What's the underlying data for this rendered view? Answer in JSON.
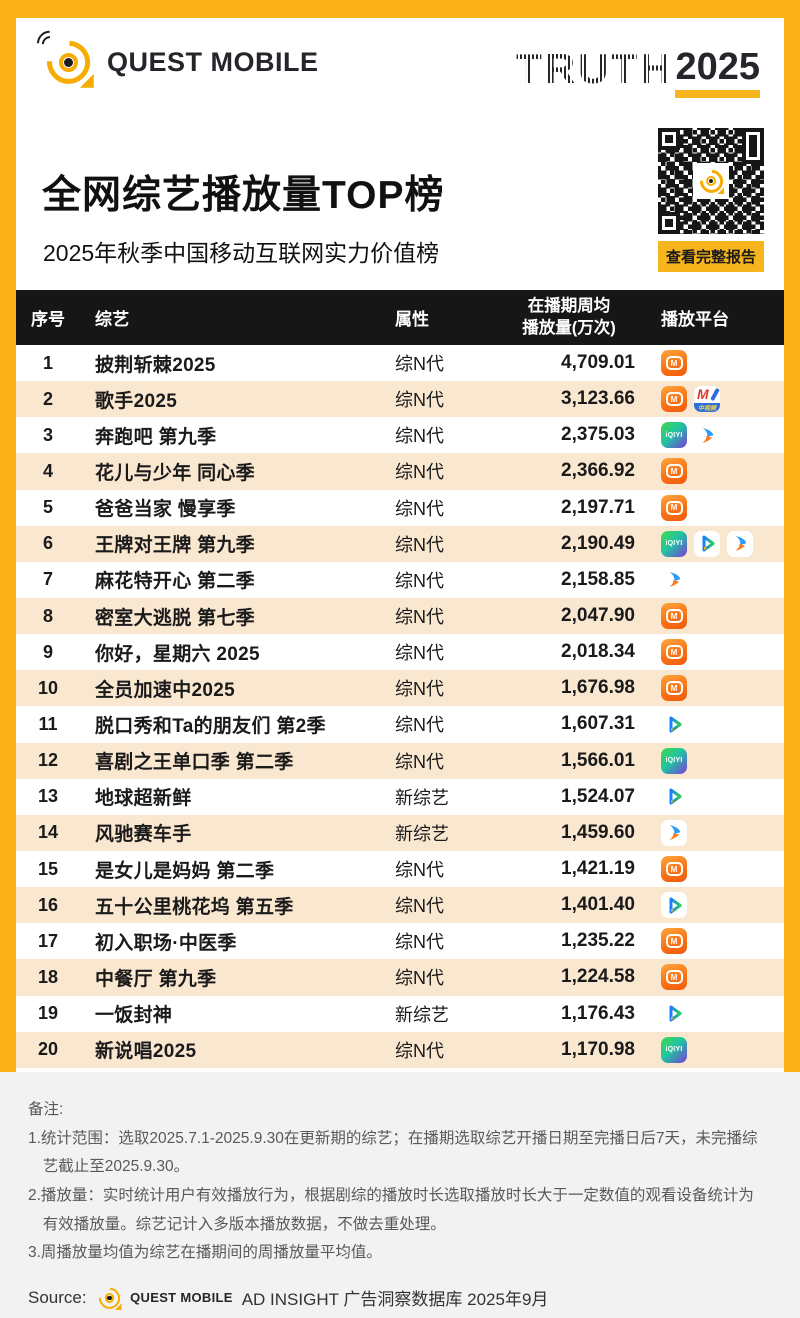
{
  "header": {
    "brand": "QUEST MOBILE",
    "truth_word": "TRUTH",
    "truth_year": "2025",
    "qr_button": "查看完整报告"
  },
  "title": "全网综艺播放量TOP榜",
  "subtitle": "2025年秋季中国移动互联网实力价值榜",
  "accent_colors": {
    "frame_yellow": "#FBB216",
    "row_alt": "#FAE7D0",
    "header_black": "#161616",
    "footer_gray": "#F2F2F2"
  },
  "chart_data": {
    "type": "table",
    "title": "全网综艺播放量TOP榜",
    "subtitle": "2025年秋季中国移动互联网实力价值榜",
    "columns": [
      "序号",
      "综艺",
      "属性",
      "在播期周均播放量(万次)",
      "播放平台"
    ],
    "rows": [
      {
        "rank": "1",
        "show": "披荆斩棘2025",
        "attr": "综N代",
        "value": "4,709.01",
        "platforms": [
          "mgtv"
        ]
      },
      {
        "rank": "2",
        "show": "歌手2025",
        "attr": "综N代",
        "value": "3,123.66",
        "platforms": [
          "mgtv",
          "zhongshipin"
        ]
      },
      {
        "rank": "3",
        "show": "奔跑吧 第九季",
        "attr": "综N代",
        "value": "2,375.03",
        "platforms": [
          "iqiyi",
          "youku"
        ]
      },
      {
        "rank": "4",
        "show": "花儿与少年 同心季",
        "attr": "综N代",
        "value": "2,366.92",
        "platforms": [
          "mgtv"
        ]
      },
      {
        "rank": "5",
        "show": "爸爸当家 慢享季",
        "attr": "综N代",
        "value": "2,197.71",
        "platforms": [
          "mgtv"
        ]
      },
      {
        "rank": "6",
        "show": "王牌对王牌 第九季",
        "attr": "综N代",
        "value": "2,190.49",
        "platforms": [
          "iqiyi",
          "tencent",
          "youku"
        ]
      },
      {
        "rank": "7",
        "show": "麻花特开心 第二季",
        "attr": "综N代",
        "value": "2,158.85",
        "platforms": [
          "youku"
        ]
      },
      {
        "rank": "8",
        "show": "密室大逃脱 第七季",
        "attr": "综N代",
        "value": "2,047.90",
        "platforms": [
          "mgtv"
        ]
      },
      {
        "rank": "9",
        "show": "你好，星期六 2025",
        "attr": "综N代",
        "value": "2,018.34",
        "platforms": [
          "mgtv"
        ]
      },
      {
        "rank": "10",
        "show": "全员加速中2025",
        "attr": "综N代",
        "value": "1,676.98",
        "platforms": [
          "mgtv"
        ]
      },
      {
        "rank": "11",
        "show": "脱口秀和Ta的朋友们 第2季",
        "attr": "综N代",
        "value": "1,607.31",
        "platforms": [
          "tencent"
        ]
      },
      {
        "rank": "12",
        "show": "喜剧之王单口季 第二季",
        "attr": "综N代",
        "value": "1,566.01",
        "platforms": [
          "iqiyi"
        ]
      },
      {
        "rank": "13",
        "show": "地球超新鲜",
        "attr": "新综艺",
        "value": "1,524.07",
        "platforms": [
          "tencent"
        ]
      },
      {
        "rank": "14",
        "show": "风驰赛车手",
        "attr": "新综艺",
        "value": "1,459.60",
        "platforms": [
          "youku"
        ]
      },
      {
        "rank": "15",
        "show": "是女儿是妈妈 第二季",
        "attr": "综N代",
        "value": "1,421.19",
        "platforms": [
          "mgtv"
        ]
      },
      {
        "rank": "16",
        "show": "五十公里桃花坞 第五季",
        "attr": "综N代",
        "value": "1,401.40",
        "platforms": [
          "tencent"
        ]
      },
      {
        "rank": "17",
        "show": "初入职场·中医季",
        "attr": "综N代",
        "value": "1,235.22",
        "platforms": [
          "mgtv"
        ]
      },
      {
        "rank": "18",
        "show": "中餐厅 第九季",
        "attr": "综N代",
        "value": "1,224.58",
        "platforms": [
          "mgtv"
        ]
      },
      {
        "rank": "19",
        "show": "一饭封神",
        "attr": "新综艺",
        "value": "1,176.43",
        "platforms": [
          "tencent"
        ]
      },
      {
        "rank": "20",
        "show": "新说唱2025",
        "attr": "综N代",
        "value": "1,170.98",
        "platforms": [
          "iqiyi"
        ]
      }
    ]
  },
  "table_headers": {
    "rank": "序号",
    "show": "综艺",
    "attr": "属性",
    "value_line1": "在播期周均",
    "value_line2": "播放量(万次)",
    "platform": "播放平台"
  },
  "platform_names": {
    "mgtv": "芒果TV",
    "iqiyi": "爱奇艺",
    "tencent": "腾讯视频",
    "youku": "优酷",
    "zhongshipin": "中视频"
  },
  "icons": {
    "mgtv_label": "M",
    "iqiyi_label": "iQIYI",
    "zsp_m": "M",
    "zsp_band": "中视频"
  },
  "notes": {
    "label": "备注:",
    "items": [
      "1.统计范围：选取2025.7.1-2025.9.30在更新期的综艺；在播期选取综艺开播日期至完播日后7天，未完播综艺截止至2025.9.30。",
      "2.播放量：实时统计用户有效播放行为，根据剧综的播放时长选取播放时长大于一定数值的观看设备统计为有效播放量。综艺记计入多版本播放数据，不做去重处理。",
      "3.周播放量均值为综艺在播期间的周播放量平均值。"
    ]
  },
  "source": {
    "label": "Source:",
    "brand": "QUEST MOBILE",
    "text": "AD INSIGHT 广告洞察数据库  2025年9月"
  }
}
